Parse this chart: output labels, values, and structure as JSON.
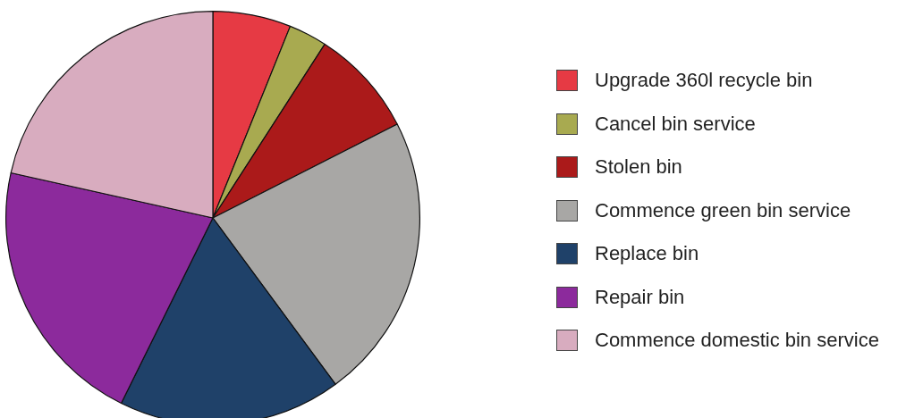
{
  "chart_data": {
    "type": "pie",
    "categories": [
      "Upgrade 360l recycle bin",
      "Cancel bin service",
      "Stolen bin",
      "Commence green bin service",
      "Replace bin",
      "Repair bin",
      "Commence domestic bin service"
    ],
    "values": [
      6.1,
      3.0,
      8.4,
      22.4,
      17.4,
      21.2,
      21.5
    ],
    "colors": [
      "#e63a44",
      "#a8aa50",
      "#ab1a1a",
      "#a8a7a5",
      "#1f4169",
      "#8c2a9c",
      "#d8acbf"
    ],
    "legend": "right"
  }
}
